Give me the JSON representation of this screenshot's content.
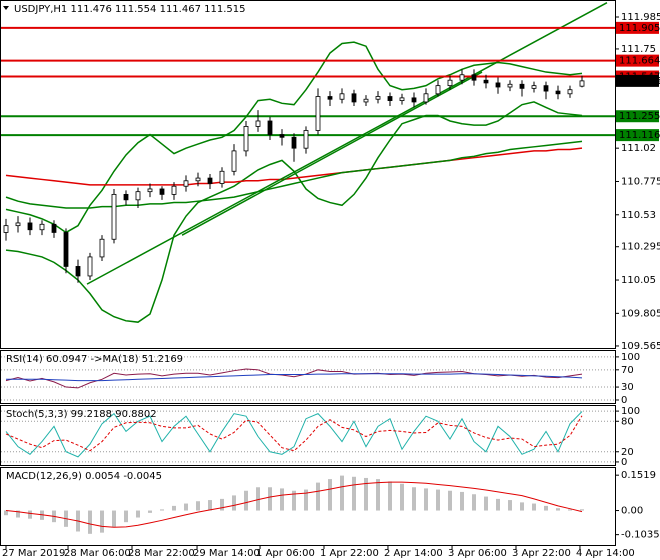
{
  "chart_data": [
    {
      "type": "candlestick",
      "title": "USDJPY,H1",
      "opens": [
        110.4,
        110.45,
        110.47,
        110.42,
        110.46,
        110.4,
        110.15,
        110.08,
        110.22,
        110.35,
        110.68,
        110.64,
        110.7,
        110.72,
        110.68,
        110.74,
        110.78,
        110.8,
        110.76,
        110.85,
        111.0,
        111.18,
        111.22,
        111.12,
        111.1,
        111.02,
        111.15,
        111.4,
        111.38,
        111.42,
        111.36,
        111.38,
        111.4,
        111.37,
        111.39,
        111.36,
        111.42,
        111.48,
        111.52,
        111.56,
        111.52,
        111.5,
        111.47,
        111.49,
        111.46,
        111.48,
        111.44,
        111.42,
        111.476
      ],
      "highs": [
        110.5,
        110.52,
        110.51,
        110.49,
        110.49,
        110.43,
        110.2,
        110.25,
        110.38,
        110.72,
        110.71,
        110.73,
        110.76,
        110.74,
        110.77,
        110.82,
        110.84,
        110.83,
        110.88,
        111.05,
        111.22,
        111.3,
        111.25,
        111.16,
        111.13,
        111.18,
        111.46,
        111.44,
        111.46,
        111.45,
        111.41,
        111.44,
        111.43,
        111.42,
        111.43,
        111.46,
        111.52,
        111.55,
        111.6,
        111.6,
        111.56,
        111.54,
        111.52,
        111.52,
        111.51,
        111.51,
        111.48,
        111.48,
        111.554
      ],
      "lows": [
        110.34,
        110.4,
        110.38,
        110.38,
        110.36,
        110.1,
        110.03,
        110.05,
        110.19,
        110.32,
        110.6,
        110.58,
        110.66,
        110.64,
        110.64,
        110.7,
        110.74,
        110.72,
        110.73,
        110.82,
        110.96,
        111.14,
        111.08,
        111.04,
        110.92,
        110.98,
        111.12,
        111.33,
        111.35,
        111.33,
        111.33,
        111.35,
        111.33,
        111.34,
        111.32,
        111.34,
        111.4,
        111.45,
        111.49,
        111.48,
        111.46,
        111.42,
        111.44,
        111.4,
        111.43,
        111.38,
        111.38,
        111.39,
        111.467
      ],
      "closes": [
        110.45,
        110.47,
        110.42,
        110.46,
        110.4,
        110.15,
        110.08,
        110.22,
        110.35,
        110.68,
        110.64,
        110.7,
        110.72,
        110.68,
        110.74,
        110.78,
        110.8,
        110.76,
        110.85,
        111.0,
        111.18,
        111.22,
        111.12,
        111.1,
        111.02,
        111.15,
        111.4,
        111.38,
        111.42,
        111.36,
        111.38,
        111.4,
        111.37,
        111.39,
        111.36,
        111.42,
        111.48,
        111.52,
        111.56,
        111.52,
        111.5,
        111.47,
        111.49,
        111.46,
        111.48,
        111.44,
        111.42,
        111.45,
        111.515
      ],
      "bands": {
        "color": "#008000",
        "upper": [
          110.57,
          110.55,
          110.53,
          110.5,
          110.46,
          110.4,
          110.45,
          110.6,
          110.71,
          110.85,
          110.97,
          111.06,
          111.12,
          111.05,
          110.98,
          111.02,
          111.05,
          111.08,
          111.1,
          111.15,
          111.25,
          111.37,
          111.38,
          111.35,
          111.34,
          111.45,
          111.58,
          111.72,
          111.79,
          111.8,
          111.77,
          111.6,
          111.48,
          111.45,
          111.46,
          111.48,
          111.53,
          111.56,
          111.6,
          111.63,
          111.64,
          111.65,
          111.64,
          111.62,
          111.6,
          111.58,
          111.57,
          111.56,
          111.57
        ],
        "lower": [
          110.27,
          110.26,
          110.24,
          110.22,
          110.18,
          110.12,
          110.05,
          109.95,
          109.83,
          109.78,
          109.75,
          109.74,
          109.8,
          110.05,
          110.38,
          110.52,
          110.62,
          110.66,
          110.7,
          110.74,
          110.8,
          110.86,
          110.9,
          110.93,
          110.85,
          110.72,
          110.65,
          110.62,
          110.6,
          110.68,
          110.8,
          110.95,
          111.08,
          111.2,
          111.23,
          111.26,
          111.26,
          111.22,
          111.2,
          111.19,
          111.19,
          111.22,
          111.28,
          111.34,
          111.36,
          111.32,
          111.28,
          111.27,
          111.26
        ]
      },
      "moving_averages": [
        {
          "color": "#e00000",
          "values": [
            110.82,
            110.81,
            110.8,
            110.79,
            110.78,
            110.77,
            110.76,
            110.75,
            110.75,
            110.75,
            110.75,
            110.75,
            110.75,
            110.75,
            110.75,
            110.75,
            110.76,
            110.76,
            110.77,
            110.77,
            110.78,
            110.78,
            110.79,
            110.79,
            110.8,
            110.81,
            110.82,
            110.83,
            110.84,
            110.85,
            110.86,
            110.87,
            110.88,
            110.89,
            110.9,
            110.91,
            110.92,
            110.93,
            110.94,
            110.95,
            110.96,
            110.97,
            110.98,
            110.99,
            111.0,
            111.0,
            111.01,
            111.01,
            111.02
          ]
        },
        {
          "color": "#008000",
          "values": [
            110.66,
            110.63,
            110.61,
            110.6,
            110.59,
            110.58,
            110.58,
            110.58,
            110.59,
            110.59,
            110.6,
            110.6,
            110.61,
            110.61,
            110.62,
            110.62,
            110.63,
            110.64,
            110.65,
            110.66,
            110.68,
            110.7,
            110.72,
            110.74,
            110.76,
            110.78,
            110.8,
            110.82,
            110.84,
            110.85,
            110.86,
            110.87,
            110.88,
            110.89,
            110.9,
            110.91,
            110.92,
            110.93,
            110.95,
            110.96,
            110.98,
            110.99,
            111.01,
            111.02,
            111.03,
            111.04,
            111.05,
            111.06,
            111.07
          ]
        }
      ],
      "trendlines": [
        {
          "color": "#008000",
          "x": [
            6.75,
            50.08
          ],
          "y": [
            110.02,
            112.09
          ]
        },
        {
          "color": "#008000",
          "x": [
            14.67,
            39.67
          ],
          "y": [
            110.38,
            111.58
          ]
        }
      ],
      "levels": [
        {
          "value": 111.905,
          "color": "#e00000"
        },
        {
          "value": 111.664,
          "color": "#e00000"
        },
        {
          "value": 111.547,
          "color": "#e00000"
        },
        {
          "value": 111.255,
          "color": "#008000"
        },
        {
          "value": 111.116,
          "color": "#008000"
        }
      ],
      "ylim": [
        109.55,
        112.11
      ],
      "yticks": [
        111.985,
        111.75,
        111.515,
        111.02,
        110.775,
        110.53,
        110.295,
        110.05,
        109.805,
        109.565
      ],
      "xticks": [
        {
          "value": 0,
          "label": "27 Mar 2019"
        },
        {
          "value": 5.17,
          "label": "28 Mar 06:00"
        },
        {
          "value": 10.5,
          "label": "28 Mar 22:00"
        },
        {
          "value": 15.92,
          "label": "29 Mar 14:00"
        },
        {
          "value": 21.17,
          "label": "1 Apr 06:00"
        },
        {
          "value": 26.5,
          "label": "1 Apr 22:00"
        },
        {
          "value": 31.83,
          "label": "2 Apr 14:00"
        },
        {
          "value": 37.17,
          "label": "3 Apr 06:00"
        },
        {
          "value": 42.5,
          "label": "3 Apr 22:00"
        },
        {
          "value": 47.83,
          "label": "4 Apr 14:00"
        }
      ]
    },
    {
      "type": "line",
      "ylim": [
        -7,
        116
      ],
      "yticks": [
        100,
        70,
        30,
        0
      ],
      "grid": true,
      "series": [
        {
          "name": "RSI(14)",
          "color": "#8b1a4a",
          "values": [
            45,
            52,
            44,
            50,
            42,
            30,
            28,
            40,
            48,
            62,
            58,
            60,
            61,
            56,
            60,
            62,
            62,
            58,
            63,
            68,
            72,
            70,
            60,
            58,
            54,
            60,
            70,
            66,
            66,
            60,
            61,
            62,
            59,
            60,
            57,
            62,
            64,
            65,
            66,
            61,
            59,
            56,
            58,
            55,
            57,
            53,
            52,
            56,
            60.0947
          ]
        },
        {
          "name": "->MA(18)",
          "color": "#1f3fbf",
          "values": [
            48,
            48,
            48,
            48,
            47,
            46,
            45,
            45,
            45,
            46,
            47,
            48,
            49,
            50,
            51,
            52,
            53,
            54,
            55,
            56,
            57,
            58,
            59,
            59,
            59,
            59,
            60,
            60,
            61,
            61,
            61,
            61,
            61,
            61,
            60,
            60,
            60,
            60,
            61,
            61,
            60,
            59,
            58,
            57,
            56,
            55,
            54,
            53,
            51.2169
          ]
        }
      ]
    },
    {
      "type": "line",
      "ylim": [
        -8,
        112
      ],
      "yticks": [
        100,
        80,
        20,
        0
      ],
      "grid": true,
      "series": [
        {
          "name": "Stoch(5,3,3)",
          "color": "#20b2aa",
          "values": [
            60,
            30,
            15,
            40,
            70,
            20,
            10,
            35,
            75,
            95,
            60,
            80,
            90,
            40,
            70,
            90,
            55,
            20,
            60,
            95,
            90,
            50,
            20,
            15,
            30,
            85,
            95,
            70,
            40,
            80,
            30,
            70,
            85,
            25,
            60,
            90,
            80,
            45,
            85,
            40,
            20,
            70,
            50,
            15,
            25,
            60,
            20,
            75,
            99.2188
          ]
        },
        {
          "color": "#e00000",
          "dashed": true,
          "values": [
            55,
            45,
            35,
            28,
            42,
            43,
            33,
            22,
            40,
            68,
            77,
            78,
            77,
            70,
            67,
            67,
            72,
            55,
            45,
            58,
            82,
            78,
            53,
            28,
            22,
            43,
            70,
            83,
            68,
            63,
            50,
            60,
            62,
            60,
            57,
            58,
            77,
            72,
            70,
            57,
            48,
            43,
            47,
            45,
            30,
            33,
            35,
            52,
            90.8802
          ]
        }
      ]
    },
    {
      "type": "bar",
      "ylim": [
        -0.148,
        0.187
      ],
      "yticks": [
        0.1519,
        {
          "value": 0,
          "label": "0.00"
        },
        -0.1035
      ],
      "series": [
        {
          "name": "MACD(12,26,9)",
          "color": "#c0c0c0",
          "values": [
            -0.02,
            -0.03,
            -0.035,
            -0.04,
            -0.05,
            -0.07,
            -0.09,
            -0.1,
            -0.095,
            -0.07,
            -0.05,
            -0.03,
            -0.01,
            0.005,
            0.02,
            0.03,
            0.04,
            0.045,
            0.05,
            0.065,
            0.085,
            0.1,
            0.1,
            0.095,
            0.085,
            0.09,
            0.12,
            0.135,
            0.15,
            0.145,
            0.14,
            0.135,
            0.125,
            0.115,
            0.1,
            0.095,
            0.09,
            0.085,
            0.08,
            0.07,
            0.06,
            0.05,
            0.045,
            0.035,
            0.03,
            0.02,
            0.01,
            0.005,
            0.0054
          ]
        },
        {
          "type": "line",
          "color": "#e00000",
          "values": [
            0,
            -0.005,
            -0.012,
            -0.018,
            -0.025,
            -0.035,
            -0.045,
            -0.058,
            -0.068,
            -0.072,
            -0.07,
            -0.063,
            -0.053,
            -0.042,
            -0.03,
            -0.018,
            -0.007,
            0.003,
            0.012,
            0.022,
            0.034,
            0.047,
            0.058,
            0.066,
            0.071,
            0.075,
            0.083,
            0.092,
            0.102,
            0.11,
            0.116,
            0.12,
            0.122,
            0.122,
            0.12,
            0.117,
            0.112,
            0.107,
            0.101,
            0.095,
            0.088,
            0.08,
            0.072,
            0.064,
            0.05,
            0.035,
            0.02,
            0.008,
            -0.0045
          ]
        }
      ]
    }
  ]
}
